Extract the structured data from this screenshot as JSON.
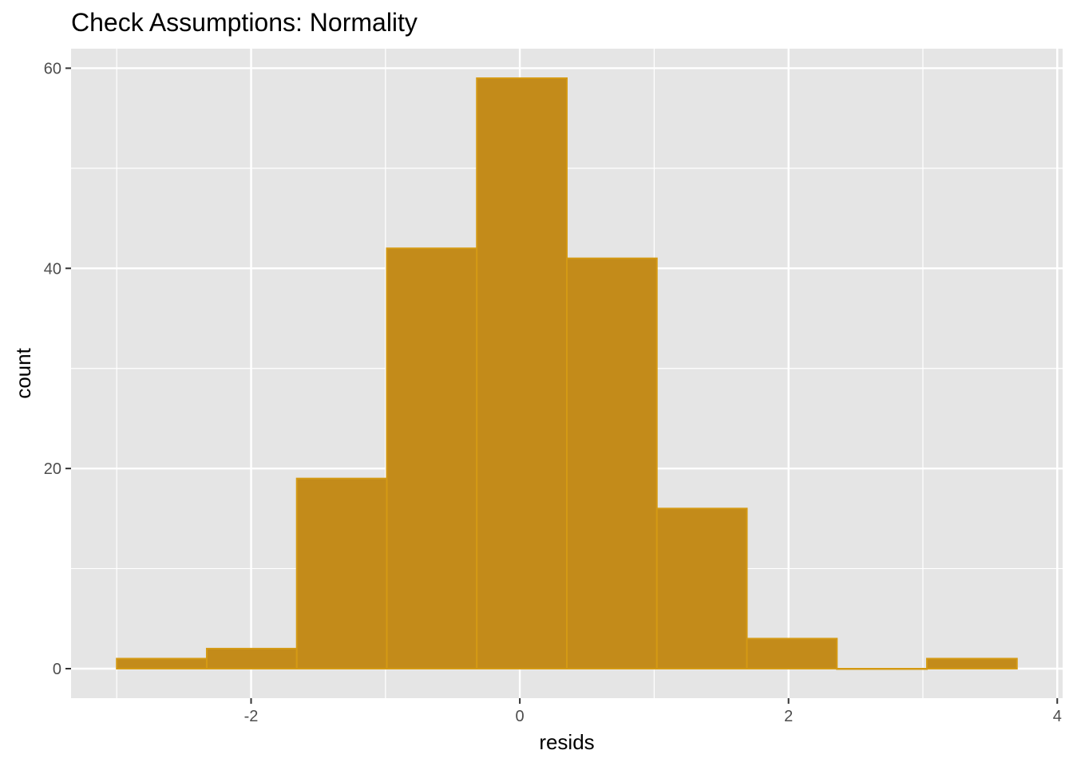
{
  "chart_data": {
    "type": "bar",
    "title": "Check Assumptions: Normality",
    "xlabel": "resids",
    "ylabel": "count",
    "bin_edges": [
      -3.0,
      -2.33,
      -1.66,
      -0.99,
      -0.32,
      0.35,
      1.02,
      1.69,
      2.36,
      3.03,
      3.7
    ],
    "values": [
      1,
      2,
      19,
      42,
      59,
      41,
      16,
      3,
      0,
      1
    ],
    "xlim": [
      -3.34,
      4.04
    ],
    "ylim": [
      -2.95,
      61.95
    ],
    "x_ticks": [
      -2,
      0,
      2,
      4
    ],
    "x_tick_labels": [
      "-2",
      "0",
      "2",
      "4"
    ],
    "y_ticks": [
      0,
      20,
      40,
      60
    ],
    "y_tick_labels": [
      "0",
      "20",
      "40",
      "60"
    ],
    "grid": true,
    "bar_fill": "#C38B1A",
    "bar_outline": "#D49A14",
    "panel_background": "#E5E5E5",
    "grid_color": "#FFFFFF"
  }
}
